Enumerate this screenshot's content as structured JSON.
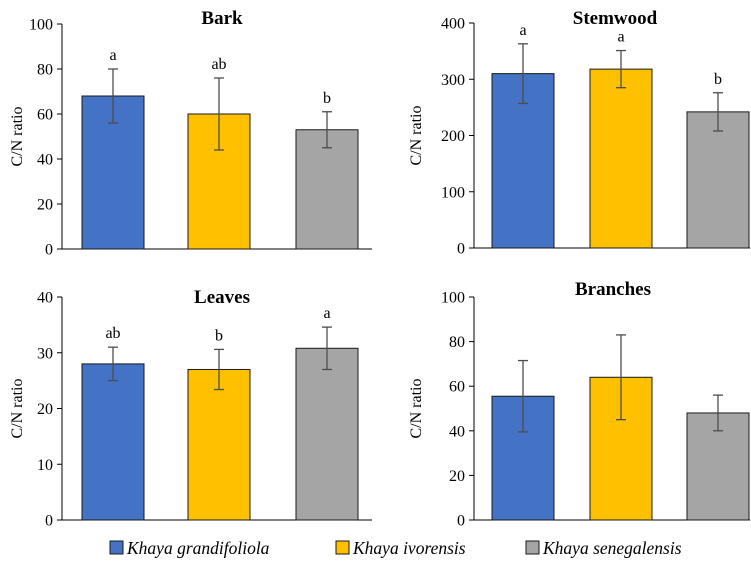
{
  "legend": {
    "items": [
      {
        "label": "Khaya grandifoliola",
        "color": "#4472C4"
      },
      {
        "label": "Khaya ivorensis",
        "color": "#FFC000"
      },
      {
        "label": "Khaya senegalensis",
        "color": "#A5A5A5"
      }
    ]
  },
  "chart_data": [
    {
      "type": "bar",
      "title": "Bark",
      "ylabel": "C/N ratio",
      "ylim": [
        0,
        100
      ],
      "yticks": [
        0,
        20,
        40,
        60,
        80,
        100
      ],
      "categories": [
        "Khaya grandifoliola",
        "Khaya ivorensis",
        "Khaya senegalensis"
      ],
      "values": [
        68,
        60,
        53
      ],
      "errors": [
        12,
        16,
        8
      ],
      "letters": [
        "a",
        "ab",
        "b"
      ],
      "colors": [
        "#4472C4",
        "#FFC000",
        "#A5A5A5"
      ]
    },
    {
      "type": "bar",
      "title": "Stemwood",
      "ylabel": "C/N ratio",
      "ylim": [
        0,
        400
      ],
      "yticks": [
        0,
        100,
        200,
        300,
        400
      ],
      "categories": [
        "Khaya grandifoliola",
        "Khaya ivorensis",
        "Khaya senegalensis"
      ],
      "values": [
        310,
        318,
        242
      ],
      "errors": [
        53,
        33,
        34
      ],
      "letters": [
        "a",
        "a",
        "b"
      ],
      "colors": [
        "#4472C4",
        "#FFC000",
        "#A5A5A5"
      ]
    },
    {
      "type": "bar",
      "title": "Leaves",
      "ylabel": "C/N ratio",
      "ylim": [
        0,
        40
      ],
      "yticks": [
        0,
        10,
        20,
        30,
        40
      ],
      "categories": [
        "Khaya grandifoliola",
        "Khaya ivorensis",
        "Khaya senegalensis"
      ],
      "values": [
        28,
        27,
        30.8
      ],
      "errors": [
        3,
        3.6,
        3.8
      ],
      "letters": [
        "ab",
        "b",
        "a"
      ],
      "colors": [
        "#4472C4",
        "#FFC000",
        "#A5A5A5"
      ]
    },
    {
      "type": "bar",
      "title": "Branches",
      "ylabel": "C/N ratio",
      "ylim": [
        0,
        100
      ],
      "yticks": [
        0,
        20,
        40,
        60,
        80,
        100
      ],
      "categories": [
        "Khaya grandifoliola",
        "Khaya ivorensis",
        "Khaya senegalensis"
      ],
      "values": [
        55.5,
        64,
        48
      ],
      "errors": [
        16,
        19,
        8
      ],
      "letters": [
        "",
        "",
        ""
      ],
      "colors": [
        "#4472C4",
        "#FFC000",
        "#A5A5A5"
      ]
    }
  ]
}
